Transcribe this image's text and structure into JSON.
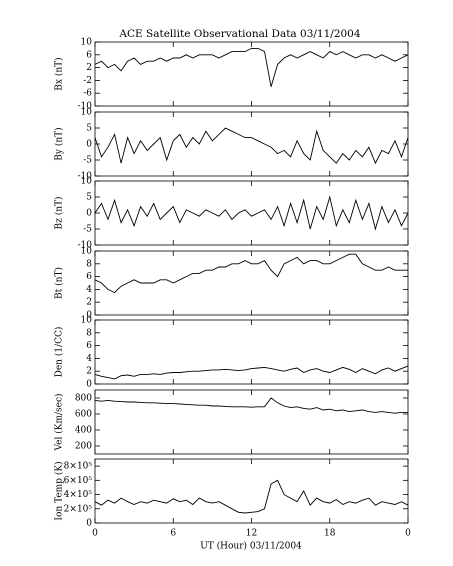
{
  "chart_data": [
    {
      "type": "line",
      "title": "ACE Satellite Observational Data   03/11/2004",
      "ylabel": "Bx (nT)",
      "color": "#000000",
      "x": [
        0,
        0.5,
        1,
        1.5,
        2,
        2.5,
        3,
        3.5,
        4,
        4.5,
        5,
        5.5,
        6,
        6.5,
        7,
        7.5,
        8,
        8.5,
        9,
        9.5,
        10,
        10.5,
        11,
        11.5,
        12,
        12.5,
        13,
        13.5,
        14,
        14.5,
        15,
        15.5,
        16,
        16.5,
        17,
        17.5,
        18,
        18.5,
        19,
        19.5,
        20,
        20.5,
        21,
        21.5,
        22,
        22.5,
        23,
        23.5,
        24
      ],
      "values": [
        3,
        4,
        2,
        3,
        1,
        4,
        5,
        3,
        4,
        4,
        5,
        4,
        5,
        5,
        6,
        5,
        6,
        6,
        6,
        5,
        6,
        7,
        7,
        7,
        8,
        8,
        7,
        -4,
        3,
        5,
        6,
        5,
        6,
        7,
        6,
        5,
        7,
        6,
        7,
        6,
        5,
        6,
        6,
        5,
        6,
        5,
        4,
        5,
        6
      ],
      "ylim": [
        -10,
        10
      ],
      "yticks": [
        -10,
        -6,
        -2,
        2,
        6,
        10
      ]
    },
    {
      "type": "line",
      "ylabel": "By (nT)",
      "color": "#000000",
      "x": [
        0,
        0.5,
        1,
        1.5,
        2,
        2.5,
        3,
        3.5,
        4,
        4.5,
        5,
        5.5,
        6,
        6.5,
        7,
        7.5,
        8,
        8.5,
        9,
        9.5,
        10,
        10.5,
        11,
        11.5,
        12,
        12.5,
        13,
        13.5,
        14,
        14.5,
        15,
        15.5,
        16,
        16.5,
        17,
        17.5,
        18,
        18.5,
        19,
        19.5,
        20,
        20.5,
        21,
        21.5,
        22,
        22.5,
        23,
        23.5,
        24
      ],
      "values": [
        2,
        -4,
        -1,
        3,
        -6,
        2,
        -3,
        1,
        -2,
        0,
        2,
        -5,
        1,
        3,
        -1,
        2,
        0,
        4,
        1,
        3,
        5,
        4,
        3,
        2,
        2,
        1,
        0,
        -1,
        -3,
        -2,
        -4,
        1,
        -3,
        -5,
        4,
        -2,
        -4,
        -6,
        -3,
        -5,
        -2,
        -4,
        -1,
        -6,
        -2,
        -3,
        1,
        -4,
        2
      ],
      "ylim": [
        -10,
        10
      ],
      "yticks": [
        -10,
        -5,
        0,
        5,
        10
      ]
    },
    {
      "type": "line",
      "ylabel": "Bz (nT)",
      "color": "#000000",
      "x": [
        0,
        0.5,
        1,
        1.5,
        2,
        2.5,
        3,
        3.5,
        4,
        4.5,
        5,
        5.5,
        6,
        6.5,
        7,
        7.5,
        8,
        8.5,
        9,
        9.5,
        10,
        10.5,
        11,
        11.5,
        12,
        12.5,
        13,
        13.5,
        14,
        14.5,
        15,
        15.5,
        16,
        16.5,
        17,
        17.5,
        18,
        18.5,
        19,
        19.5,
        20,
        20.5,
        21,
        21.5,
        22,
        22.5,
        23,
        23.5,
        24
      ],
      "values": [
        0,
        3,
        -2,
        4,
        -3,
        1,
        -4,
        2,
        -1,
        3,
        -2,
        0,
        2,
        -3,
        1,
        0,
        -1,
        1,
        0,
        -1,
        1,
        -2,
        0,
        1,
        -1,
        0,
        1,
        -2,
        2,
        -4,
        3,
        -3,
        4,
        -5,
        2,
        -2,
        5,
        -4,
        1,
        -3,
        4,
        -2,
        3,
        -5,
        2,
        -3,
        1,
        -4,
        0
      ],
      "ylim": [
        -10,
        10
      ],
      "yticks": [
        -10,
        -5,
        0,
        5,
        10
      ]
    },
    {
      "type": "line",
      "ylabel": "Bt (nT)",
      "color": "#000000",
      "x": [
        0,
        0.5,
        1,
        1.5,
        2,
        2.5,
        3,
        3.5,
        4,
        4.5,
        5,
        5.5,
        6,
        6.5,
        7,
        7.5,
        8,
        8.5,
        9,
        9.5,
        10,
        10.5,
        11,
        11.5,
        12,
        12.5,
        13,
        13.5,
        14,
        14.5,
        15,
        15.5,
        16,
        16.5,
        17,
        17.5,
        18,
        18.5,
        19,
        19.5,
        20,
        20.5,
        21,
        21.5,
        22,
        22.5,
        23,
        23.5,
        24
      ],
      "values": [
        5.5,
        5,
        4,
        3.5,
        4.5,
        5,
        5.5,
        5,
        5,
        5,
        5.5,
        5.5,
        5,
        5.5,
        6,
        6.5,
        6.5,
        7,
        7,
        7.5,
        7.5,
        8,
        8,
        8.5,
        8,
        8,
        8.5,
        7,
        6,
        8,
        8.5,
        9,
        8,
        8.5,
        8.5,
        8,
        8,
        8.5,
        9,
        9.5,
        9.5,
        8,
        7.5,
        7,
        7,
        7.5,
        7,
        7,
        7
      ],
      "ylim": [
        0,
        10
      ],
      "yticks": [
        0,
        2,
        4,
        6,
        8,
        10
      ]
    },
    {
      "type": "line",
      "ylabel": "Den (1/CC)",
      "color": "#000000",
      "x": [
        0,
        0.5,
        1,
        1.5,
        2,
        2.5,
        3,
        3.5,
        4,
        4.5,
        5,
        5.5,
        6,
        6.5,
        7,
        7.5,
        8,
        8.5,
        9,
        9.5,
        10,
        10.5,
        11,
        11.5,
        12,
        12.5,
        13,
        13.5,
        14,
        14.5,
        15,
        15.5,
        16,
        16.5,
        17,
        17.5,
        18,
        18.5,
        19,
        19.5,
        20,
        20.5,
        21,
        21.5,
        22,
        22.5,
        23,
        23.5,
        24
      ],
      "values": [
        1.5,
        1.2,
        1,
        0.8,
        1.3,
        1.4,
        1.2,
        1.5,
        1.5,
        1.6,
        1.5,
        1.7,
        1.8,
        1.8,
        1.9,
        2,
        2,
        2.1,
        2.2,
        2.2,
        2.3,
        2.2,
        2.1,
        2.2,
        2.4,
        2.5,
        2.6,
        2.4,
        2.2,
        2,
        2.3,
        2.5,
        1.8,
        2.2,
        2.4,
        2,
        1.8,
        2.2,
        2.6,
        2.3,
        1.8,
        2.4,
        2,
        1.6,
        2.2,
        2.5,
        2,
        2.4,
        2.8
      ],
      "ylim": [
        0,
        10
      ],
      "yticks": [
        0,
        2,
        4,
        6,
        8,
        10
      ]
    },
    {
      "type": "line",
      "ylabel": "Vel (Km/sec)",
      "color": "#000000",
      "x": [
        0,
        0.5,
        1,
        1.5,
        2,
        2.5,
        3,
        3.5,
        4,
        4.5,
        5,
        5.5,
        6,
        6.5,
        7,
        7.5,
        8,
        8.5,
        9,
        9.5,
        10,
        10.5,
        11,
        11.5,
        12,
        12.5,
        13,
        13.5,
        14,
        14.5,
        15,
        15.5,
        16,
        16.5,
        17,
        17.5,
        18,
        18.5,
        19,
        19.5,
        20,
        20.5,
        21,
        21.5,
        22,
        22.5,
        23,
        23.5,
        24
      ],
      "values": [
        770,
        760,
        770,
        760,
        755,
        750,
        750,
        745,
        740,
        740,
        735,
        730,
        730,
        725,
        720,
        715,
        710,
        710,
        700,
        700,
        695,
        690,
        690,
        690,
        685,
        690,
        690,
        800,
        740,
        700,
        680,
        690,
        670,
        660,
        680,
        650,
        660,
        640,
        650,
        630,
        640,
        650,
        630,
        620,
        630,
        620,
        610,
        620,
        620
      ],
      "ylim": [
        100,
        900
      ],
      "yticks": [
        200,
        400,
        600,
        800
      ]
    },
    {
      "type": "line",
      "ylabel": "Ion Temp (K)",
      "color": "#000000",
      "xlabel": "UT (Hour)   03/11/2004",
      "x": [
        0,
        0.5,
        1,
        1.5,
        2,
        2.5,
        3,
        3.5,
        4,
        4.5,
        5,
        5.5,
        6,
        6.5,
        7,
        7.5,
        8,
        8.5,
        9,
        9.5,
        10,
        10.5,
        11,
        11.5,
        12,
        12.5,
        13,
        13.5,
        14,
        14.5,
        15,
        15.5,
        16,
        16.5,
        17,
        17.5,
        18,
        18.5,
        19,
        19.5,
        20,
        20.5,
        21,
        21.5,
        22,
        22.5,
        23,
        23.5,
        24
      ],
      "values": [
        300000,
        250000,
        320000,
        280000,
        350000,
        300000,
        260000,
        300000,
        280000,
        320000,
        300000,
        280000,
        340000,
        300000,
        320000,
        260000,
        350000,
        300000,
        280000,
        300000,
        250000,
        200000,
        150000,
        140000,
        150000,
        160000,
        200000,
        550000,
        600000,
        400000,
        350000,
        300000,
        450000,
        250000,
        350000,
        300000,
        280000,
        330000,
        260000,
        300000,
        280000,
        320000,
        350000,
        250000,
        300000,
        280000,
        260000,
        300000,
        250000
      ],
      "ylim": [
        0,
        900000
      ],
      "yticks": [
        0,
        {
          "value": 200000,
          "label": "2×10⁵"
        },
        {
          "value": 400000,
          "label": "4×10⁵"
        },
        {
          "value": 600000,
          "label": "6×10⁵"
        },
        {
          "value": 800000,
          "label": "8×10⁵"
        }
      ],
      "xlim": [
        0,
        24
      ],
      "xticks": [
        0,
        6,
        12,
        18,
        {
          "value": 24,
          "label": "0"
        }
      ]
    }
  ]
}
